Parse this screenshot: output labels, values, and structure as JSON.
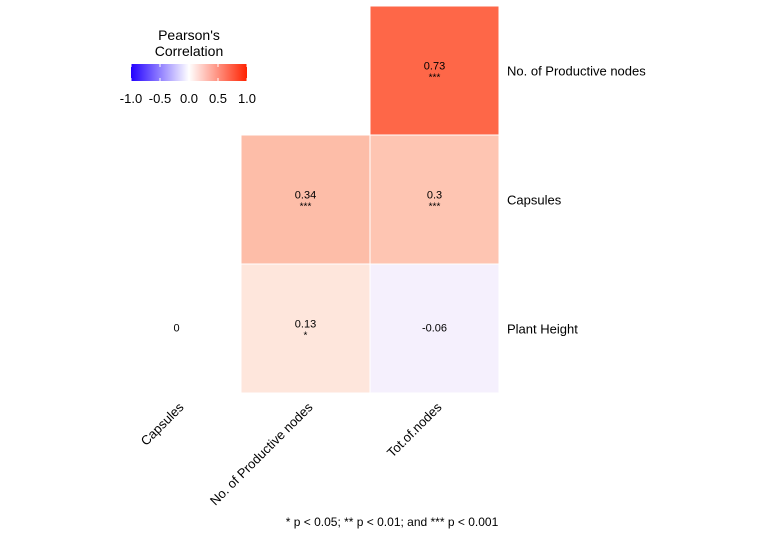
{
  "chart_data": {
    "type": "heatmap",
    "legend": {
      "title_line1": "Pearson's",
      "title_line2": "Correlation",
      "placement": "top-left",
      "ticks": [
        "-1.0",
        "-0.5",
        "0.0",
        "0.5",
        "1.0"
      ],
      "range": [
        -1,
        1
      ],
      "colors": {
        "low": "#2200ff",
        "mid": "#ffffff",
        "high": "#ff2200"
      }
    },
    "x_categories": [
      "Capsules",
      "No. of Productive nodes",
      "Tot.of.nodes"
    ],
    "y_categories": [
      "No. of Productive nodes",
      "Capsules",
      "Plant Height"
    ],
    "cells": [
      {
        "x": "Tot.of.nodes",
        "y": "No. of Productive nodes",
        "value": 0.73,
        "label": "0.73",
        "sig": "***",
        "color": "#fe6748"
      },
      {
        "x": "No. of Productive nodes",
        "y": "Capsules",
        "value": 0.34,
        "label": "0.34",
        "sig": "***",
        "color": "#fdbda8"
      },
      {
        "x": "Tot.of.nodes",
        "y": "Capsules",
        "value": 0.3,
        "label": "0.3",
        "sig": "***",
        "color": "#fec5b2"
      },
      {
        "x": "No. of Productive nodes",
        "y": "Plant Height",
        "value": 0.13,
        "label": "0.13",
        "sig": "*",
        "color": "#fee6dc"
      },
      {
        "x": "Tot.of.nodes",
        "y": "Plant Height",
        "value": -0.06,
        "label": "-0.06",
        "sig": "",
        "color": "#f5f0fd"
      },
      {
        "x": "Capsules",
        "y": "Plant Height",
        "value": 0,
        "label": "0",
        "sig": "",
        "color": null
      }
    ],
    "footnote": "* p < 0.05; ** p < 0.01; and *** p < 0.001"
  }
}
